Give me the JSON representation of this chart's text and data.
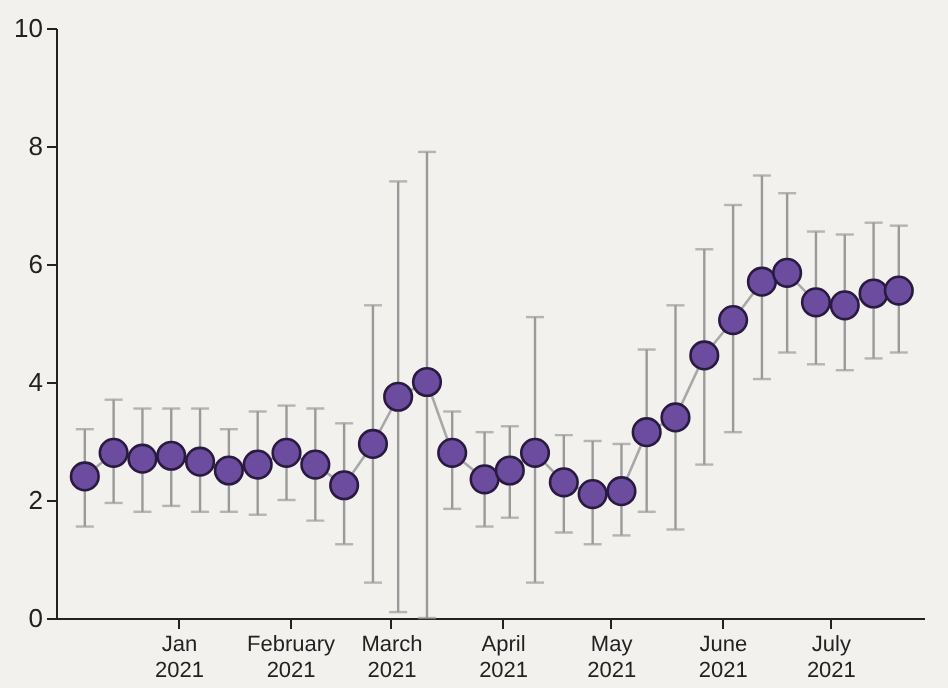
{
  "chart_data": {
    "type": "line",
    "marker": "circle",
    "grid": false,
    "x": [
      "2020-12-06",
      "2020-12-14",
      "2020-12-22",
      "2020-12-30",
      "2021-01-07",
      "2021-01-15",
      "2021-01-23",
      "2021-01-31",
      "2021-02-08",
      "2021-02-16",
      "2021-02-24",
      "2021-03-03",
      "2021-03-11",
      "2021-03-18",
      "2021-03-27",
      "2021-04-03",
      "2021-04-10",
      "2021-04-18",
      "2021-04-26",
      "2021-05-04",
      "2021-05-11",
      "2021-05-19",
      "2021-05-27",
      "2021-06-04",
      "2021-06-12",
      "2021-06-19",
      "2021-06-27",
      "2021-07-05",
      "2021-07-13",
      "2021-07-20"
    ],
    "series": [
      {
        "color": "#6b4c9e",
        "values": [
          2.4,
          2.8,
          2.7,
          2.75,
          2.65,
          2.5,
          2.6,
          2.8,
          2.6,
          2.25,
          2.95,
          3.75,
          4.0,
          2.8,
          2.35,
          2.5,
          2.8,
          2.3,
          2.1,
          2.15,
          3.15,
          3.4,
          4.45,
          5.05,
          5.7,
          5.85,
          5.35,
          5.3,
          5.5,
          5.55
        ],
        "errors": [
          [
            1.55,
            3.2
          ],
          [
            1.95,
            3.7
          ],
          [
            1.8,
            3.55
          ],
          [
            1.9,
            3.55
          ],
          [
            1.8,
            3.55
          ],
          [
            1.8,
            3.2
          ],
          [
            1.75,
            3.5
          ],
          [
            2.0,
            3.6
          ],
          [
            1.65,
            3.55
          ],
          [
            1.25,
            3.3
          ],
          [
            0.6,
            5.3
          ],
          [
            0.1,
            7.4
          ],
          [
            0,
            7.9
          ],
          [
            1.85,
            3.5
          ],
          [
            1.55,
            3.15
          ],
          [
            1.7,
            3.25
          ],
          [
            0.6,
            5.1
          ],
          [
            1.45,
            3.1
          ],
          [
            1.25,
            3.0
          ],
          [
            1.4,
            2.95
          ],
          [
            1.8,
            4.55
          ],
          [
            1.5,
            5.3
          ],
          [
            2.6,
            6.25
          ],
          [
            3.15,
            7.0
          ],
          [
            4.05,
            7.5
          ],
          [
            4.5,
            7.2
          ],
          [
            4.3,
            6.55
          ],
          [
            4.2,
            6.5
          ],
          [
            4.4,
            6.7
          ],
          [
            4.5,
            6.65
          ]
        ]
      }
    ],
    "xlim": [
      "2020-11-28",
      "2021-07-27"
    ],
    "xticks": [
      {
        "value": "2021-01-01",
        "label": "Jan 2021"
      },
      {
        "value": "2021-02-01",
        "label": "February 2021"
      },
      {
        "value": "2021-03-01",
        "label": "March 2021"
      },
      {
        "value": "2021-04-01",
        "label": "April 2021"
      },
      {
        "value": "2021-05-01",
        "label": "May 2021"
      },
      {
        "value": "2021-06-01",
        "label": "June 2021"
      },
      {
        "value": "2021-07-01",
        "label": "July 2021"
      }
    ],
    "ylim": [
      0,
      10
    ],
    "yticks": [
      0,
      2,
      4,
      6,
      8,
      10
    ]
  }
}
